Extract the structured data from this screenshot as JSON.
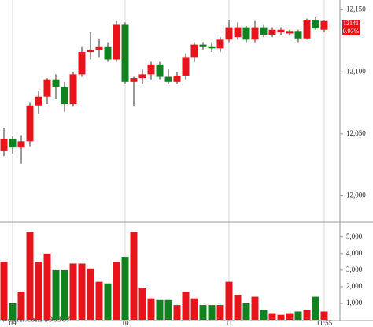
{
  "chart_data": [
    {
      "type": "candlestick",
      "up_color": "#e8141c",
      "down_color": "#12811f",
      "open": [
        12036,
        12046,
        12039,
        12044,
        12073,
        12080,
        12094,
        12088,
        12074,
        12098,
        12116,
        12118,
        12120,
        12110,
        12138,
        12092,
        12095,
        12098,
        12106,
        12096,
        12092,
        12097,
        12112,
        12122,
        12120,
        12119,
        12126,
        12128,
        12136,
        12126,
        12136,
        12130,
        12132,
        12131,
        12133,
        12127,
        12142,
        12134
      ],
      "high": [
        12055,
        12048,
        12049,
        12075,
        12085,
        12095,
        12098,
        12092,
        12100,
        12120,
        12132,
        12127,
        12124,
        12141,
        12140,
        12096,
        12102,
        12108,
        12108,
        12102,
        12100,
        12115,
        12124,
        12124,
        12124,
        12128,
        12142,
        12140,
        12137,
        12141,
        12138,
        12136,
        12136,
        12134,
        12134,
        12143,
        12144,
        12142
      ],
      "low": [
        12032,
        12034,
        12026,
        12040,
        12066,
        12074,
        12078,
        12068,
        12072,
        12096,
        12110,
        12112,
        12108,
        12108,
        12090,
        12072,
        12090,
        12094,
        12094,
        12090,
        12090,
        12094,
        12108,
        12118,
        12116,
        12116,
        12124,
        12126,
        12124,
        12124,
        12128,
        12128,
        12130,
        12130,
        12124,
        12126,
        12134,
        12132
      ],
      "close": [
        12046,
        12039,
        12044,
        12073,
        12080,
        12094,
        12088,
        12074,
        12098,
        12116,
        12118,
        12120,
        12110,
        12138,
        12092,
        12095,
        12098,
        12106,
        12096,
        12092,
        12097,
        12112,
        12122,
        12120,
        12119,
        12126,
        12136,
        12136,
        12126,
        12136,
        12130,
        12134,
        12134,
        12133,
        12127,
        12142,
        12135,
        12141
      ],
      "ylim": [
        11980,
        12158
      ],
      "yticks": [
        {
          "value": 12000,
          "label": "12,000"
        },
        {
          "value": 12050,
          "label": "12,050"
        },
        {
          "value": 12100,
          "label": "12,100"
        },
        {
          "value": 12150,
          "label": "12,150"
        }
      ],
      "annotations": [
        "12141",
        "0.93%"
      ]
    },
    {
      "type": "bar",
      "categories": [
        null,
        "09",
        null,
        null,
        null,
        null,
        null,
        null,
        null,
        null,
        null,
        null,
        null,
        null,
        "10",
        null,
        null,
        null,
        null,
        null,
        null,
        null,
        null,
        null,
        null,
        null,
        "11",
        null,
        null,
        null,
        null,
        null,
        null,
        null,
        null,
        null,
        null,
        "11:55"
      ],
      "values": [
        3500,
        1000,
        1700,
        5300,
        3500,
        4000,
        3000,
        3000,
        3400,
        3400,
        3100,
        2300,
        2200,
        3500,
        3800,
        5300,
        1900,
        1300,
        1200,
        1200,
        900,
        1700,
        1300,
        900,
        900,
        900,
        2300,
        1500,
        1000,
        1400,
        600,
        400,
        300,
        400,
        500,
        600,
        1400,
        500
      ],
      "ylim": [
        0,
        5800
      ],
      "yticks": [
        {
          "value": 1000,
          "label": "1,000"
        },
        {
          "value": 2000,
          "label": "2,000"
        },
        {
          "value": 3000,
          "label": "3,000"
        },
        {
          "value": 4000,
          "label": "4,000"
        },
        {
          "value": 5000,
          "label": "5,000"
        }
      ],
      "watermark": "wearn.com #96367"
    }
  ]
}
